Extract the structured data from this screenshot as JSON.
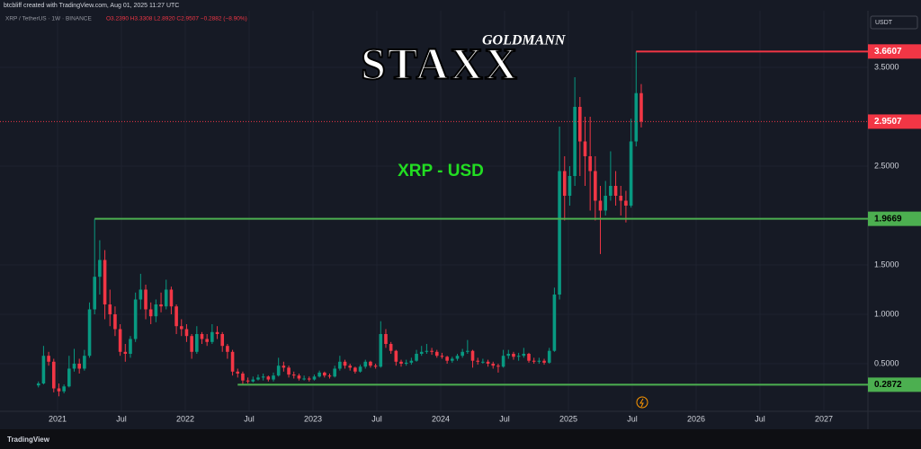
{
  "header": {
    "credit": "btcbliff created with TradingView.com, Aug 01, 2025 11:27 UTC",
    "symbol": "XRP / TetherUS · 1W · BINANCE",
    "ohlc": "O3.2390 H3.3308 L2.8920 C2.9507 −0.2882 (−8.90%)",
    "currency": "USDT"
  },
  "footer": {
    "brand": "TradingView"
  },
  "chart_data": {
    "type": "candlestick",
    "watermark": {
      "top": "GOLDMANN",
      "main": "STAXX"
    },
    "annotation": "XRP - USD",
    "up_color": "#089981",
    "down_color": "#f23645",
    "grid": true,
    "xlim": [
      2020.549,
      2027.345
    ],
    "xticks": [
      {
        "value": 2021,
        "label": "2021"
      },
      {
        "value": 2021.5,
        "label": "Jul"
      },
      {
        "value": 2022,
        "label": "2022"
      },
      {
        "value": 2022.5,
        "label": "Jul"
      },
      {
        "value": 2023,
        "label": "2023"
      },
      {
        "value": 2023.5,
        "label": "Jul"
      },
      {
        "value": 2024,
        "label": "2024"
      },
      {
        "value": 2024.5,
        "label": "Jul"
      },
      {
        "value": 2025,
        "label": "2025"
      },
      {
        "value": 2025.5,
        "label": "Jul"
      },
      {
        "value": 2026,
        "label": "2026"
      },
      {
        "value": 2026.5,
        "label": "Jul"
      },
      {
        "value": 2027,
        "label": "2027"
      }
    ],
    "ylim": [
      0,
      4
    ],
    "yticks": [
      {
        "value": 0.5,
        "label": "0.5000"
      },
      {
        "value": 1,
        "label": "1.0000"
      },
      {
        "value": 1.5,
        "label": "1.5000"
      },
      {
        "value": 2.5,
        "label": "2.5000"
      },
      {
        "value": 3.5,
        "label": "3.5000"
      }
    ],
    "levels": [
      {
        "value": 3.6607,
        "color": "#f23645",
        "from": 2025.53,
        "style": "solid"
      },
      {
        "value": 2.9507,
        "color": "#f23645",
        "style": "dotted"
      },
      {
        "value": 1.9669,
        "color": "#4caf50",
        "from": 2021.29,
        "style": "solid"
      },
      {
        "value": 0.2872,
        "color": "#4caf50",
        "from": 2022.41,
        "style": "solid"
      }
    ],
    "x": [
      2020.85,
      2020.89,
      2020.93,
      2020.97,
      2021.01,
      2021.05,
      2021.09,
      2021.13,
      2021.17,
      2021.21,
      2021.25,
      2021.29,
      2021.33,
      2021.37,
      2021.41,
      2021.45,
      2021.49,
      2021.53,
      2021.57,
      2021.61,
      2021.65,
      2021.69,
      2021.73,
      2021.77,
      2021.81,
      2021.85,
      2021.89,
      2021.93,
      2021.97,
      2022.01,
      2022.05,
      2022.09,
      2022.13,
      2022.17,
      2022.21,
      2022.25,
      2022.29,
      2022.33,
      2022.37,
      2022.41,
      2022.45,
      2022.49,
      2022.53,
      2022.57,
      2022.61,
      2022.65,
      2022.69,
      2022.73,
      2022.77,
      2022.81,
      2022.85,
      2022.89,
      2022.93,
      2022.97,
      2023.01,
      2023.05,
      2023.09,
      2023.13,
      2023.17,
      2023.21,
      2023.25,
      2023.29,
      2023.33,
      2023.37,
      2023.41,
      2023.45,
      2023.49,
      2023.53,
      2023.57,
      2023.61,
      2023.65,
      2023.69,
      2023.73,
      2023.77,
      2023.81,
      2023.85,
      2023.89,
      2023.93,
      2023.97,
      2024.01,
      2024.05,
      2024.09,
      2024.13,
      2024.17,
      2024.21,
      2024.25,
      2024.29,
      2024.33,
      2024.37,
      2024.41,
      2024.45,
      2024.49,
      2024.53,
      2024.57,
      2024.61,
      2024.65,
      2024.69,
      2024.73,
      2024.77,
      2024.81,
      2024.85,
      2024.89,
      2024.93,
      2024.97,
      2025.01,
      2025.05,
      2025.09,
      2025.13,
      2025.17,
      2025.21,
      2025.25,
      2025.29,
      2025.33,
      2025.37,
      2025.41,
      2025.45,
      2025.49,
      2025.53,
      2025.57
    ],
    "open": [
      0.28,
      0.3,
      0.58,
      0.52,
      0.25,
      0.22,
      0.27,
      0.45,
      0.5,
      0.45,
      0.58,
      1.05,
      1.38,
      1.55,
      1.1,
      1.0,
      0.85,
      0.62,
      0.6,
      0.75,
      1.15,
      1.25,
      1.05,
      0.98,
      1.1,
      1.08,
      1.25,
      1.08,
      0.88,
      0.85,
      0.78,
      0.62,
      0.8,
      0.75,
      0.72,
      0.82,
      0.8,
      0.68,
      0.62,
      0.42,
      0.4,
      0.33,
      0.32,
      0.34,
      0.36,
      0.37,
      0.34,
      0.38,
      0.48,
      0.46,
      0.39,
      0.38,
      0.35,
      0.35,
      0.34,
      0.37,
      0.41,
      0.38,
      0.37,
      0.45,
      0.52,
      0.48,
      0.46,
      0.42,
      0.47,
      0.52,
      0.48,
      0.47,
      0.8,
      0.7,
      0.63,
      0.52,
      0.5,
      0.51,
      0.53,
      0.6,
      0.62,
      0.63,
      0.62,
      0.58,
      0.57,
      0.53,
      0.55,
      0.58,
      0.62,
      0.63,
      0.53,
      0.52,
      0.52,
      0.5,
      0.48,
      0.47,
      0.58,
      0.6,
      0.57,
      0.58,
      0.6,
      0.53,
      0.52,
      0.53,
      0.51,
      0.63,
      1.2,
      2.45,
      2.2,
      2.4,
      3.1,
      2.75,
      2.6,
      2.45,
      2.15,
      2.05,
      2.2,
      2.3,
      2.2,
      2.15,
      2.1,
      2.75,
      3.239
    ],
    "high": [
      0.32,
      0.68,
      0.62,
      0.55,
      0.3,
      0.29,
      0.58,
      0.65,
      0.55,
      0.64,
      1.12,
      1.9669,
      1.75,
      1.65,
      1.25,
      1.08,
      0.9,
      0.7,
      0.78,
      1.22,
      1.41,
      1.3,
      1.12,
      1.15,
      1.22,
      1.35,
      1.28,
      1.1,
      0.95,
      0.9,
      0.8,
      0.88,
      0.82,
      0.8,
      0.9,
      0.88,
      0.82,
      0.7,
      0.64,
      0.45,
      0.42,
      0.36,
      0.37,
      0.39,
      0.4,
      0.38,
      0.41,
      0.56,
      0.52,
      0.48,
      0.42,
      0.4,
      0.38,
      0.37,
      0.39,
      0.43,
      0.42,
      0.4,
      0.48,
      0.58,
      0.54,
      0.5,
      0.47,
      0.49,
      0.54,
      0.53,
      0.5,
      0.93,
      0.85,
      0.72,
      0.64,
      0.54,
      0.54,
      0.56,
      0.64,
      0.68,
      0.7,
      0.66,
      0.64,
      0.61,
      0.58,
      0.57,
      0.6,
      0.65,
      0.74,
      0.64,
      0.56,
      0.55,
      0.54,
      0.52,
      0.5,
      0.64,
      0.64,
      0.62,
      0.61,
      0.66,
      0.61,
      0.56,
      0.56,
      0.55,
      0.66,
      1.27,
      2.9,
      2.6,
      2.5,
      3.4,
      3.2,
      3.0,
      3.0,
      2.6,
      2.3,
      2.35,
      2.65,
      2.45,
      2.3,
      2.25,
      2.98,
      3.6607,
      3.3308
    ],
    "low": [
      0.26,
      0.29,
      0.48,
      0.21,
      0.17,
      0.2,
      0.26,
      0.42,
      0.4,
      0.43,
      0.56,
      1.0,
      1.2,
      0.95,
      0.88,
      0.78,
      0.58,
      0.52,
      0.56,
      0.72,
      1.05,
      0.95,
      0.9,
      0.92,
      1.02,
      1.05,
      1.0,
      0.8,
      0.78,
      0.72,
      0.55,
      0.6,
      0.7,
      0.68,
      0.7,
      0.75,
      0.62,
      0.55,
      0.38,
      0.36,
      0.2872,
      0.3,
      0.31,
      0.33,
      0.33,
      0.32,
      0.32,
      0.37,
      0.42,
      0.36,
      0.35,
      0.33,
      0.33,
      0.32,
      0.33,
      0.36,
      0.36,
      0.35,
      0.36,
      0.43,
      0.45,
      0.43,
      0.4,
      0.41,
      0.45,
      0.46,
      0.45,
      0.46,
      0.66,
      0.6,
      0.48,
      0.47,
      0.48,
      0.49,
      0.52,
      0.58,
      0.6,
      0.59,
      0.56,
      0.55,
      0.5,
      0.51,
      0.53,
      0.56,
      0.6,
      0.46,
      0.49,
      0.5,
      0.47,
      0.45,
      0.41,
      0.46,
      0.55,
      0.54,
      0.53,
      0.56,
      0.51,
      0.5,
      0.5,
      0.49,
      0.5,
      0.62,
      1.15,
      1.95,
      2.1,
      2.3,
      2.4,
      2.3,
      2.05,
      1.95,
      1.61,
      2.0,
      2.15,
      2.1,
      2.0,
      1.93,
      2.08,
      2.7,
      2.892
    ],
    "close": [
      0.3,
      0.58,
      0.52,
      0.25,
      0.22,
      0.27,
      0.45,
      0.5,
      0.45,
      0.58,
      1.05,
      1.38,
      1.55,
      1.1,
      1.0,
      0.85,
      0.62,
      0.6,
      0.75,
      1.15,
      1.25,
      1.05,
      0.98,
      1.1,
      1.08,
      1.25,
      1.08,
      0.88,
      0.85,
      0.78,
      0.62,
      0.8,
      0.75,
      0.72,
      0.82,
      0.8,
      0.68,
      0.62,
      0.42,
      0.4,
      0.33,
      0.32,
      0.34,
      0.36,
      0.37,
      0.34,
      0.38,
      0.48,
      0.46,
      0.39,
      0.38,
      0.35,
      0.35,
      0.34,
      0.37,
      0.41,
      0.38,
      0.37,
      0.45,
      0.52,
      0.48,
      0.46,
      0.42,
      0.47,
      0.52,
      0.48,
      0.47,
      0.8,
      0.7,
      0.63,
      0.52,
      0.5,
      0.51,
      0.53,
      0.6,
      0.62,
      0.63,
      0.62,
      0.58,
      0.57,
      0.53,
      0.55,
      0.58,
      0.62,
      0.63,
      0.53,
      0.52,
      0.52,
      0.5,
      0.48,
      0.47,
      0.58,
      0.6,
      0.57,
      0.58,
      0.6,
      0.53,
      0.52,
      0.53,
      0.51,
      0.63,
      1.2,
      2.45,
      2.2,
      2.4,
      3.1,
      2.75,
      2.6,
      2.45,
      2.15,
      2.05,
      2.2,
      2.3,
      2.2,
      2.15,
      2.1,
      2.75,
      3.239,
      2.9507
    ]
  }
}
